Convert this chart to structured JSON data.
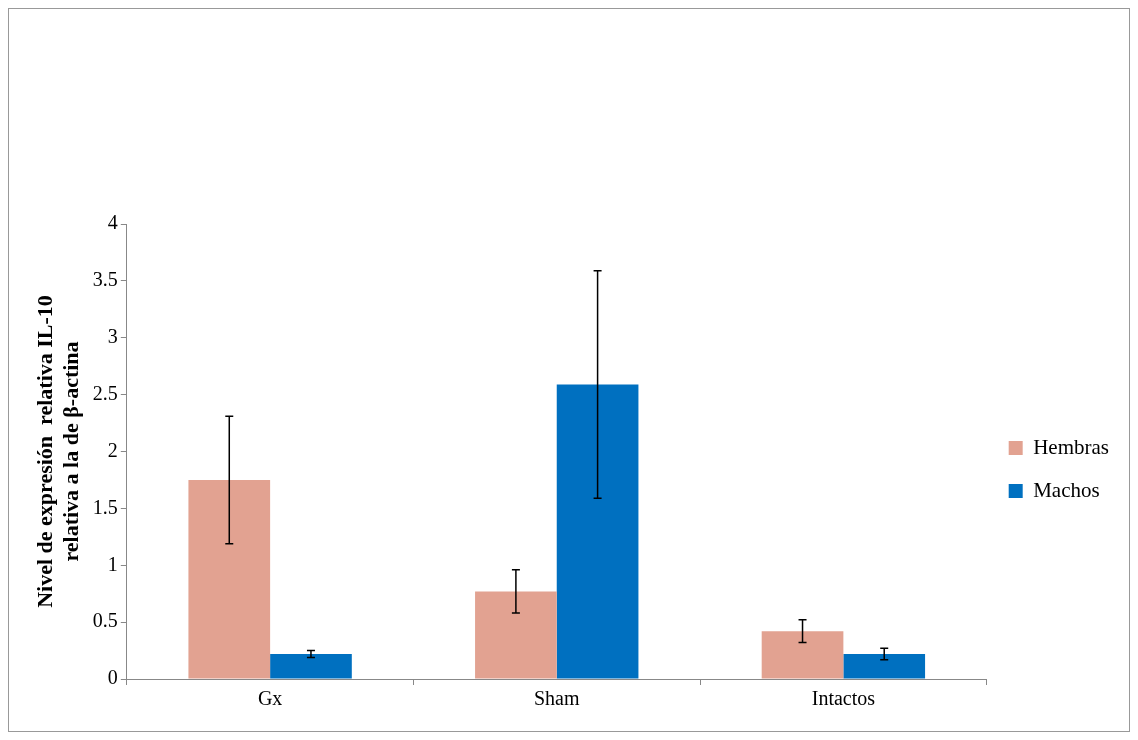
{
  "chart_data": {
    "type": "bar",
    "ylabel": "Nivel de expresión  relativa IL-10\nrelativa a la de β-actina",
    "categories": [
      "Gx",
      "Sham",
      "Intactos"
    ],
    "series": [
      {
        "name": "Hembras",
        "color": "#e2a291",
        "values": [
          1.75,
          0.77,
          0.42
        ],
        "errors": [
          0.56,
          0.19,
          0.1
        ]
      },
      {
        "name": "Machos",
        "color": "#0070c0",
        "values": [
          0.22,
          2.59,
          0.22
        ],
        "errors": [
          0.03,
          1.0,
          0.05
        ]
      }
    ],
    "ylim": [
      0,
      4
    ],
    "yticks": [
      0,
      0.5,
      1,
      1.5,
      2,
      2.5,
      3,
      3.5,
      4
    ],
    "grid": false,
    "legend": "right"
  }
}
